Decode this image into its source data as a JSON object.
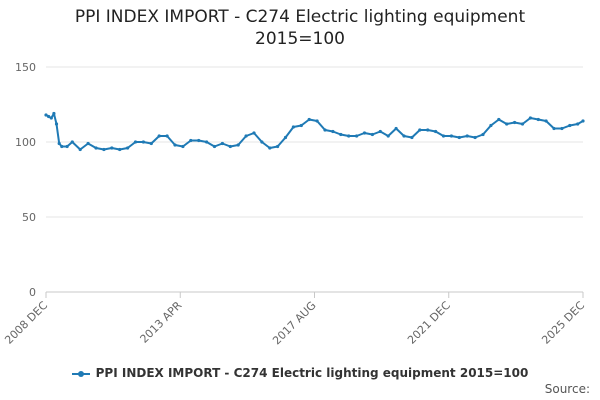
{
  "chart_data": {
    "type": "line",
    "title_lines": [
      "PPI INDEX IMPORT - C274 Electric lighting equipment",
      "2015=100"
    ],
    "xlabel": "",
    "ylabel": "",
    "ylim": [
      0,
      150
    ],
    "yticks": [
      0,
      50,
      100,
      150
    ],
    "xtick_labels": [
      "2008 DEC",
      "2013 APR",
      "2017 AUG",
      "2021 DEC",
      "2025 DEC"
    ],
    "x_range": [
      "2008-12",
      "2025-12"
    ],
    "grid": "horizontal",
    "legend_position": "bottom",
    "source_label": "Source:",
    "series": [
      {
        "name": "PPI INDEX IMPORT - C274 Electric lighting equipment 2015=100",
        "color": "#1f7ab5",
        "points": [
          [
            "2008-12",
            118
          ],
          [
            "2009-01",
            117
          ],
          [
            "2009-02",
            116
          ],
          [
            "2009-03",
            119
          ],
          [
            "2009-04",
            112
          ],
          [
            "2009-05",
            99
          ],
          [
            "2009-06",
            97
          ],
          [
            "2009-08",
            97
          ],
          [
            "2009-10",
            100
          ],
          [
            "2010-01",
            95
          ],
          [
            "2010-04",
            99
          ],
          [
            "2010-07",
            96
          ],
          [
            "2010-10",
            95
          ],
          [
            "2011-01",
            96
          ],
          [
            "2011-04",
            95
          ],
          [
            "2011-07",
            96
          ],
          [
            "2011-10",
            100
          ],
          [
            "2012-01",
            100
          ],
          [
            "2012-04",
            99
          ],
          [
            "2012-07",
            104
          ],
          [
            "2012-10",
            104
          ],
          [
            "2013-01",
            98
          ],
          [
            "2013-04",
            97
          ],
          [
            "2013-07",
            101
          ],
          [
            "2013-10",
            101
          ],
          [
            "2014-01",
            100
          ],
          [
            "2014-04",
            97
          ],
          [
            "2014-07",
            99
          ],
          [
            "2014-10",
            97
          ],
          [
            "2015-01",
            98
          ],
          [
            "2015-04",
            104
          ],
          [
            "2015-07",
            106
          ],
          [
            "2015-10",
            100
          ],
          [
            "2016-01",
            96
          ],
          [
            "2016-04",
            97
          ],
          [
            "2016-07",
            103
          ],
          [
            "2016-10",
            110
          ],
          [
            "2017-01",
            111
          ],
          [
            "2017-04",
            115
          ],
          [
            "2017-07",
            114
          ],
          [
            "2017-10",
            108
          ],
          [
            "2018-01",
            107
          ],
          [
            "2018-04",
            105
          ],
          [
            "2018-07",
            104
          ],
          [
            "2018-10",
            104
          ],
          [
            "2019-01",
            106
          ],
          [
            "2019-04",
            105
          ],
          [
            "2019-07",
            107
          ],
          [
            "2019-10",
            104
          ],
          [
            "2020-01",
            109
          ],
          [
            "2020-04",
            104
          ],
          [
            "2020-07",
            103
          ],
          [
            "2020-10",
            108
          ],
          [
            "2021-01",
            108
          ],
          [
            "2021-04",
            107
          ],
          [
            "2021-07",
            104
          ],
          [
            "2021-10",
            104
          ],
          [
            "2022-01",
            103
          ],
          [
            "2022-04",
            104
          ],
          [
            "2022-07",
            103
          ],
          [
            "2022-10",
            105
          ],
          [
            "2023-01",
            111
          ],
          [
            "2023-04",
            115
          ],
          [
            "2023-07",
            112
          ],
          [
            "2023-10",
            113
          ],
          [
            "2024-01",
            112
          ],
          [
            "2024-04",
            116
          ],
          [
            "2024-07",
            115
          ],
          [
            "2024-10",
            114
          ],
          [
            "2025-01",
            109
          ],
          [
            "2025-04",
            109
          ],
          [
            "2025-07",
            111
          ],
          [
            "2025-10",
            112
          ],
          [
            "2025-12",
            114
          ]
        ]
      }
    ]
  }
}
